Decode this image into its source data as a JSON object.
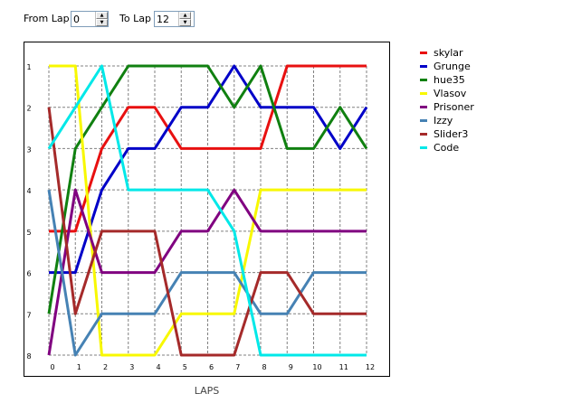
{
  "controls": {
    "from_label": "From Lap",
    "from_value": "0",
    "to_label": "To Lap",
    "to_value": "12",
    "up_glyph": "▲",
    "down_glyph": "▼"
  },
  "chart_data": {
    "type": "line",
    "title": "",
    "xlabel": "LAPS",
    "ylabel": "",
    "x": [
      0,
      1,
      2,
      3,
      4,
      5,
      6,
      7,
      8,
      9,
      10,
      11,
      12
    ],
    "xlim": [
      0,
      12
    ],
    "ylim": [
      1,
      8
    ],
    "y_inverted": true,
    "x_ticks": [
      "0",
      "1",
      "2",
      "3",
      "4",
      "5",
      "6",
      "7",
      "8",
      "9",
      "10",
      "11",
      "12"
    ],
    "y_ticks": [
      "1",
      "2",
      "3",
      "4",
      "5",
      "6",
      "7",
      "8"
    ],
    "grid": "dashed",
    "legend_position": "right",
    "series": [
      {
        "name": "skylar",
        "color": "#e81010",
        "values": [
          5,
          5,
          3,
          2,
          2,
          3,
          3,
          3,
          3,
          1,
          1,
          1,
          1
        ]
      },
      {
        "name": "Grunge",
        "color": "#0000c8",
        "values": [
          6,
          6,
          4,
          3,
          3,
          2,
          2,
          1,
          2,
          2,
          2,
          3,
          2
        ]
      },
      {
        "name": "hue35",
        "color": "#108010",
        "values": [
          7,
          3,
          2,
          1,
          1,
          1,
          1,
          2,
          1,
          3,
          3,
          2,
          3
        ]
      },
      {
        "name": "Vlasov",
        "color": "#f8f800",
        "values": [
          1,
          1,
          8,
          8,
          8,
          7,
          7,
          7,
          4,
          4,
          4,
          4,
          4
        ]
      },
      {
        "name": "Prisoner",
        "color": "#800080",
        "values": [
          8,
          4,
          6,
          6,
          6,
          5,
          5,
          4,
          5,
          5,
          5,
          5,
          5
        ]
      },
      {
        "name": "Izzy",
        "color": "#4682b4",
        "values": [
          4,
          8,
          7,
          7,
          7,
          6,
          6,
          6,
          7,
          7,
          6,
          6,
          6
        ]
      },
      {
        "name": "Slider3",
        "color": "#a52a2a",
        "values": [
          2,
          7,
          5,
          5,
          5,
          8,
          8,
          8,
          6,
          6,
          7,
          7,
          7
        ]
      },
      {
        "name": "Code",
        "color": "#00e8e8",
        "values": [
          3,
          2,
          1,
          4,
          4,
          4,
          4,
          5,
          8,
          8,
          8,
          8,
          8
        ]
      }
    ]
  }
}
